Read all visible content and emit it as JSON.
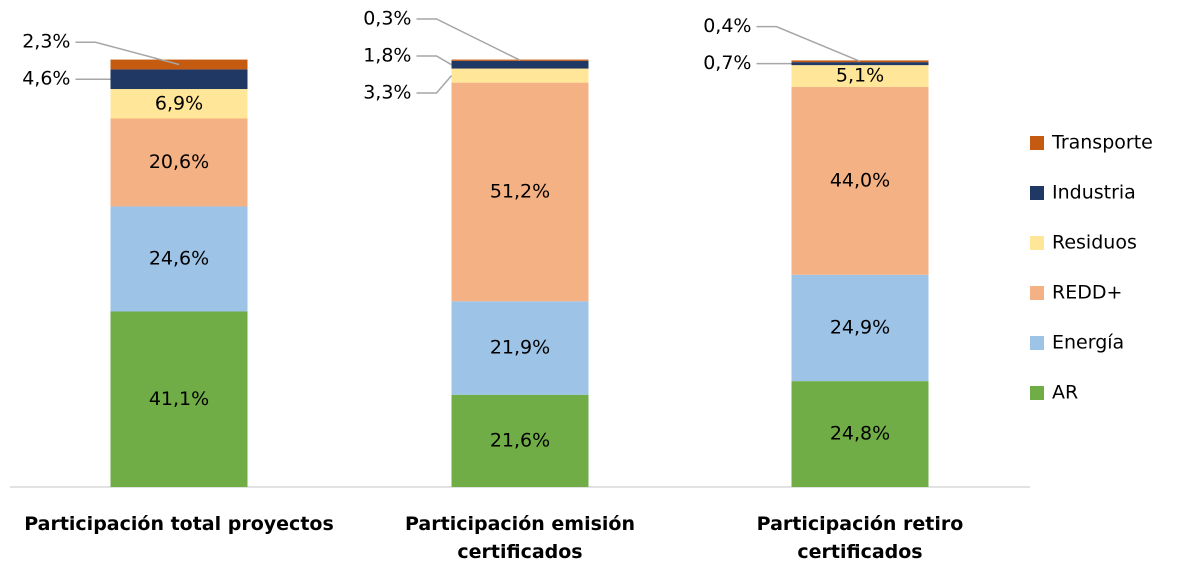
{
  "chart_data": {
    "type": "stacked_bar",
    "categories": [
      "Participación total proyectos",
      "Participación emisión certificados",
      "Participación retiro certificados"
    ],
    "ylim": [
      0,
      100
    ],
    "legend": "right",
    "series": [
      {
        "name": "AR",
        "color": "#70ad47",
        "values": [
          41.1,
          21.6,
          24.8
        ],
        "value_labels": [
          "41,1%",
          "21,6%",
          "24,8%"
        ]
      },
      {
        "name": "Energía",
        "color": "#9dc3e6",
        "values": [
          24.6,
          21.9,
          24.9
        ],
        "value_labels": [
          "24,6%",
          "21,9%",
          "24,9%"
        ]
      },
      {
        "name": "REDD+",
        "color": "#f4b183",
        "values": [
          20.6,
          51.2,
          44.0
        ],
        "value_labels": [
          "20,6%",
          "51,2%",
          "44,0%"
        ]
      },
      {
        "name": "Residuos",
        "color": "#ffe699",
        "values": [
          6.9,
          3.3,
          5.1
        ],
        "value_labels": [
          "6,9%",
          "3,3%",
          "5,1%"
        ]
      },
      {
        "name": "Industria",
        "color": "#203864",
        "values": [
          4.6,
          1.8,
          0.7
        ],
        "value_labels": [
          "4,6%",
          "1,8%",
          "0,7%"
        ]
      },
      {
        "name": "Transporte",
        "color": "#c55a11",
        "values": [
          2.3,
          0.3,
          0.4
        ],
        "value_labels": [
          "2,3%",
          "0,3%",
          "0,4%"
        ]
      }
    ]
  }
}
